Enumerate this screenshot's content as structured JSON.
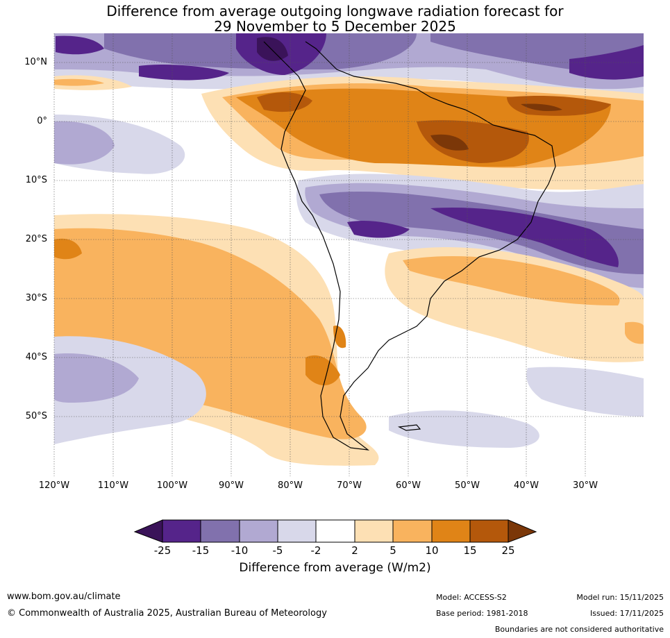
{
  "title": {
    "line1": "Difference from average outgoing longwave radiation forecast for",
    "line2": "29 November to 5 December 2025"
  },
  "axes": {
    "lat_labels": [
      "10°N",
      "0°",
      "10°S",
      "20°S",
      "30°S",
      "40°S",
      "50°S"
    ],
    "lon_labels": [
      "120°W",
      "110°W",
      "100°W",
      "90°W",
      "80°W",
      "70°W",
      "60°W",
      "50°W",
      "40°W",
      "30°W"
    ]
  },
  "colorbar": {
    "tick_labels": [
      "-25",
      "-15",
      "-10",
      "-5",
      "-2",
      "2",
      "5",
      "10",
      "15",
      "25"
    ],
    "colors": [
      "#3a1359",
      "#55248a",
      "#8171ad",
      "#b1a9d2",
      "#d8d8ea",
      "#ffffff",
      "#fde0b4",
      "#f9b35e",
      "#e08417",
      "#b4580b",
      "#7b3708"
    ],
    "title": "Difference from average (W/m2)"
  },
  "footer": {
    "website": "www.bom.gov.au/climate",
    "copyright": "© Commonwealth of Australia 2025, Australian Bureau of Meteorology",
    "model": "Model: ACCESS-S2",
    "base_period": "Base period: 1981-2018",
    "model_run": "Model run: 15/11/2025",
    "issued": "Issued: 17/11/2025",
    "disclaimer": "Boundaries are not considered authoritative"
  }
}
